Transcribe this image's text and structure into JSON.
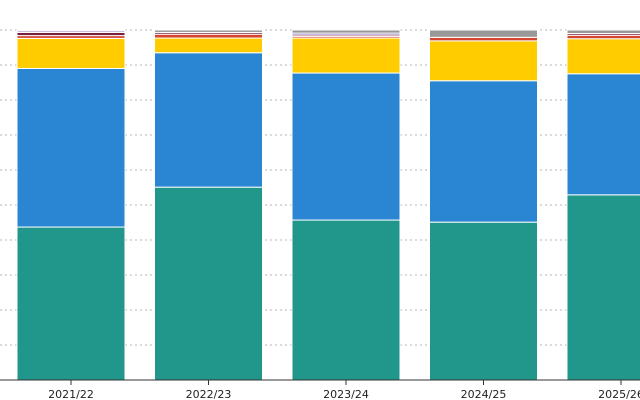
{
  "chart_data": {
    "type": "bar",
    "stacked": true,
    "normalized": true,
    "categories": [
      "2021/22",
      "2022/23",
      "2023/24",
      "2024/25",
      "2025/26"
    ],
    "series": [
      {
        "color": "#21968a",
        "values": [
          43.7,
          55.1,
          45.7,
          45.1,
          52.9
        ]
      },
      {
        "color": "#2a86d3",
        "values": [
          45.3,
          38.4,
          42.0,
          40.4,
          34.6
        ]
      },
      {
        "color": "#ffcc00",
        "values": [
          8.6,
          4.2,
          10.0,
          11.4,
          10.0
        ]
      },
      {
        "color": "#d5462f",
        "values": [
          0.8,
          1.1,
          0.5,
          1.0,
          1.0
        ]
      },
      {
        "color": "#7b1f3f",
        "values": [
          0.9,
          0.5,
          0.4,
          0.0,
          0.5
        ]
      },
      {
        "color": "#6d4ba0",
        "values": [
          0.4,
          0.0,
          0.5,
          0.0,
          0.0
        ]
      },
      {
        "color": "#999999",
        "values": [
          0.3,
          0.7,
          0.9,
          2.1,
          1.0
        ]
      }
    ],
    "ylim": [
      0,
      100
    ],
    "grid": true,
    "gridlines": [
      0,
      10,
      20,
      30,
      40,
      50,
      60,
      70,
      80,
      90,
      100
    ],
    "legend": "none"
  }
}
